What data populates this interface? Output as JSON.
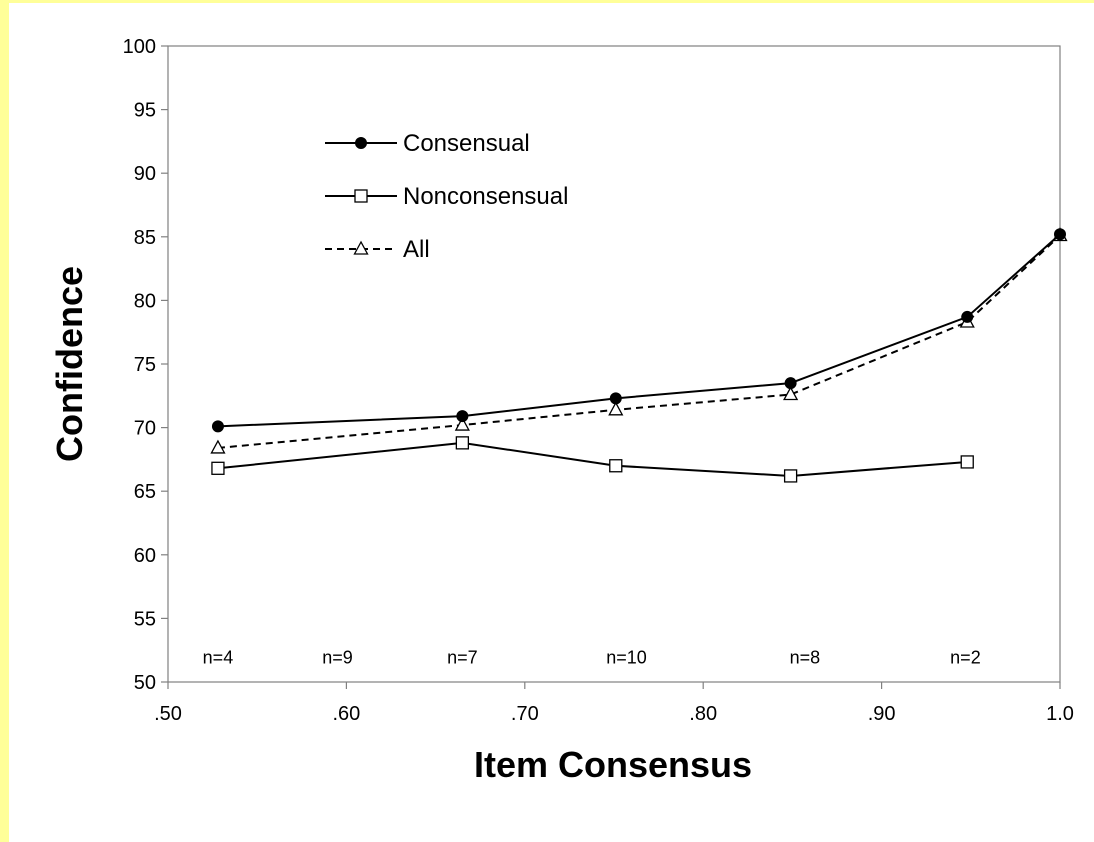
{
  "chart_data": {
    "type": "line",
    "xlabel": "Item Consensus",
    "ylabel": "Confidence",
    "xlim": [
      0.5,
      1.0
    ],
    "ylim": [
      50,
      100
    ],
    "x_ticks": [
      0.5,
      0.6,
      0.7,
      0.8,
      0.9,
      1.0
    ],
    "x_tick_labels": [
      ".50",
      ".60",
      ".70",
      ".80",
      ".90",
      "1.0"
    ],
    "y_ticks": [
      50,
      55,
      60,
      65,
      70,
      75,
      80,
      85,
      90,
      95,
      100
    ],
    "y_tick_labels": [
      "50",
      "55",
      "60",
      "65",
      "70",
      "75",
      "80",
      "85",
      "90",
      "95",
      "100"
    ],
    "grid": false,
    "legend_position": "top-left",
    "series": [
      {
        "name": "Consensual",
        "marker": "filled-circle",
        "line_style": "solid",
        "x": [
          0.528,
          0.665,
          0.751,
          0.849,
          0.948,
          1.0
        ],
        "values": [
          70.1,
          70.9,
          72.3,
          73.5,
          78.7,
          85.2
        ]
      },
      {
        "name": "Nonconsensual",
        "marker": "open-square",
        "line_style": "solid",
        "x": [
          0.528,
          0.665,
          0.751,
          0.849,
          0.948
        ],
        "values": [
          66.8,
          68.8,
          67.0,
          66.2,
          67.3
        ]
      },
      {
        "name": "All",
        "marker": "open-triangle",
        "line_style": "dashed",
        "x": [
          0.528,
          0.665,
          0.751,
          0.849,
          0.948,
          1.0
        ],
        "values": [
          68.4,
          70.2,
          71.4,
          72.6,
          78.3,
          85.1
        ]
      }
    ],
    "annotations": [
      {
        "text": "n=4",
        "x": 0.528
      },
      {
        "text": "n=9",
        "x": 0.595
      },
      {
        "text": "n=7",
        "x": 0.665
      },
      {
        "text": "n=10",
        "x": 0.757
      },
      {
        "text": "n=8",
        "x": 0.857
      },
      {
        "text": "n=2",
        "x": 0.947
      }
    ],
    "annotation_y": 52
  },
  "colors": {
    "frame_accent": "#ffff99",
    "line": "#000000",
    "background": "#ffffff"
  }
}
